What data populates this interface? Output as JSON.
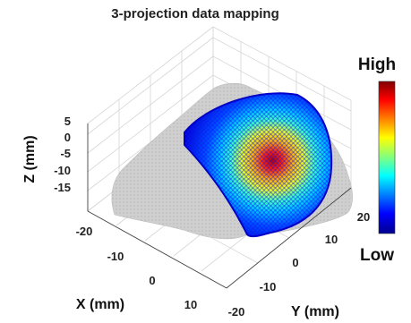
{
  "chart_data": {
    "type": "scatter",
    "dimension": "3d",
    "title": "3-projection data mapping",
    "xlabel": "X (mm)",
    "ylabel": "Y (mm)",
    "zlabel": "Z (mm)",
    "x_ticks": [
      "-20",
      "-10",
      "0",
      "10"
    ],
    "y_ticks": [
      "-20",
      "-10",
      "0",
      "10",
      "20"
    ],
    "z_ticks": [
      "5",
      "0",
      "-5",
      "-10",
      "-15"
    ],
    "xlim": [
      -25,
      15
    ],
    "ylim": [
      -22,
      22
    ],
    "zlim": [
      -17,
      6
    ],
    "grid": true,
    "colorbar": {
      "high_label": "High",
      "low_label": "Low",
      "colormap": "jet"
    },
    "series": [
      {
        "role": "surface-mesh",
        "color": "#c8c8c8"
      },
      {
        "role": "mapped-data",
        "colormap": "jet",
        "peak": {
          "x": -2,
          "y": 6,
          "z": 0
        }
      }
    ]
  }
}
